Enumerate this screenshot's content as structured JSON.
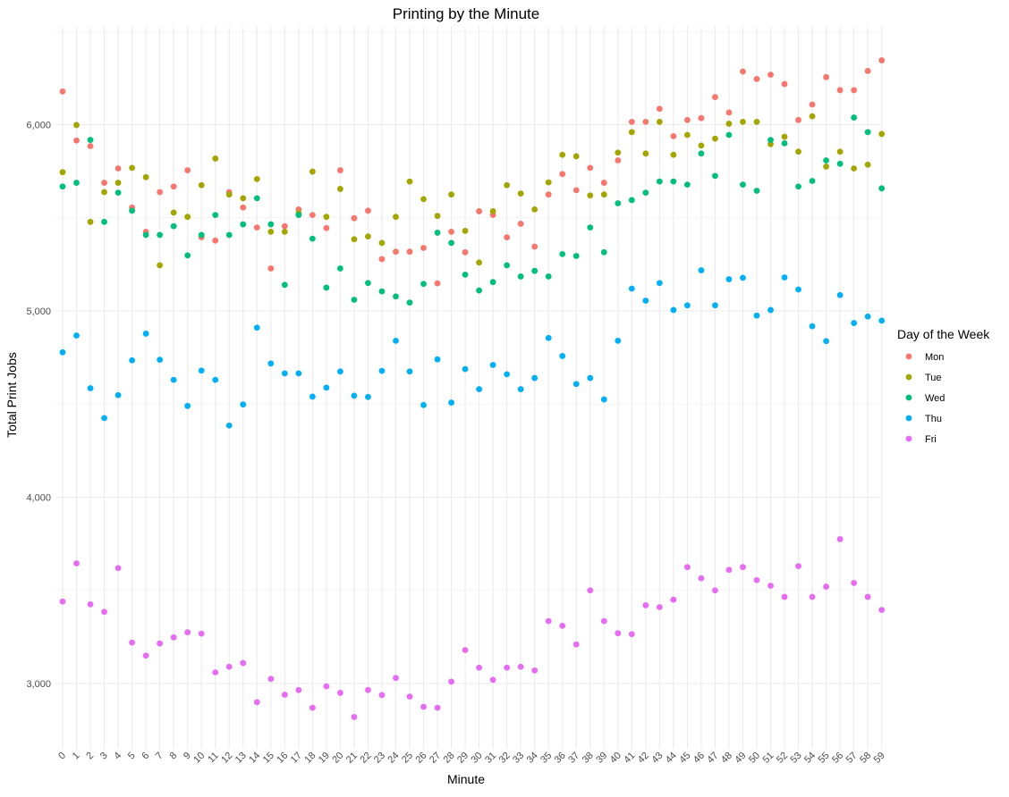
{
  "chart_data": {
    "type": "scatter",
    "title": "Printing by the Minute",
    "xlabel": "Minute",
    "ylabel": "Total Print Jobs",
    "legend_title": "Day of the Week",
    "legend_position": "right",
    "grid": true,
    "ylim": [
      2650,
      6520
    ],
    "y_ticks": [
      3000,
      4000,
      5000,
      6000
    ],
    "y_tick_labels": [
      "3,000",
      "4,000",
      "5,000",
      "6,000"
    ],
    "x": [
      0,
      1,
      2,
      3,
      4,
      5,
      6,
      7,
      8,
      9,
      10,
      11,
      12,
      13,
      14,
      15,
      16,
      17,
      18,
      19,
      20,
      21,
      22,
      23,
      24,
      25,
      26,
      27,
      28,
      29,
      30,
      31,
      32,
      33,
      34,
      35,
      36,
      37,
      38,
      39,
      40,
      41,
      42,
      43,
      44,
      45,
      46,
      47,
      48,
      49,
      50,
      51,
      52,
      53,
      54,
      55,
      56,
      57,
      58,
      59
    ],
    "x_tick_labels": [
      "0",
      "1",
      "2",
      "3",
      "4",
      "5",
      "6",
      "7",
      "8",
      "9",
      "10",
      "11",
      "12",
      "13",
      "14",
      "15",
      "16",
      "17",
      "18",
      "19",
      "20",
      "21",
      "22",
      "23",
      "24",
      "25",
      "26",
      "27",
      "28",
      "29",
      "30",
      "31",
      "32",
      "33",
      "34",
      "35",
      "36",
      "37",
      "38",
      "39",
      "40",
      "41",
      "42",
      "43",
      "44",
      "45",
      "46",
      "47",
      "48",
      "49",
      "50",
      "51",
      "52",
      "53",
      "54",
      "55",
      "56",
      "57",
      "58",
      "59"
    ],
    "series": [
      {
        "name": "Mon",
        "color": "#F8766D",
        "values": [
          6178,
          5915,
          5885,
          5688,
          5765,
          5555,
          5425,
          5638,
          5668,
          5755,
          5395,
          5378,
          5638,
          5555,
          5448,
          5228,
          5455,
          5545,
          5515,
          5445,
          5755,
          5498,
          5538,
          5278,
          5318,
          5318,
          5338,
          5148,
          5425,
          5315,
          5535,
          5515,
          5395,
          5468,
          5345,
          5625,
          5735,
          5648,
          5768,
          5688,
          5808,
          6015,
          6015,
          6085,
          5938,
          6025,
          6035,
          6148,
          6065,
          6285,
          6245,
          6268,
          6218,
          6025,
          6108,
          6255,
          6185,
          6185,
          6288,
          6345
        ]
      },
      {
        "name": "Tue",
        "color": "#A3A500",
        "values": [
          5745,
          5998,
          5478,
          5638,
          5688,
          5768,
          5718,
          5245,
          5528,
          5505,
          5675,
          5818,
          5625,
          5605,
          5708,
          5425,
          5425,
          5525,
          5748,
          5505,
          5655,
          5385,
          5400,
          5365,
          5505,
          5695,
          5600,
          5510,
          5625,
          5430,
          5260,
          5535,
          5675,
          5630,
          5545,
          5690,
          5838,
          5830,
          5620,
          5625,
          5850,
          5960,
          5845,
          6015,
          5838,
          5945,
          5888,
          5925,
          6005,
          6015,
          6015,
          5895,
          5935,
          5855,
          6045,
          5775,
          5855,
          5765,
          5785,
          5950
        ]
      },
      {
        "name": "Wed",
        "color": "#00BF7D",
        "values": [
          5668,
          5688,
          5918,
          5478,
          5635,
          5538,
          5408,
          5408,
          5455,
          5298,
          5408,
          5515,
          5408,
          5465,
          5605,
          5465,
          5140,
          5515,
          5388,
          5125,
          5228,
          5060,
          5150,
          5105,
          5078,
          5045,
          5145,
          5420,
          5365,
          5195,
          5110,
          5155,
          5245,
          5185,
          5215,
          5185,
          5305,
          5295,
          5448,
          5315,
          5578,
          5595,
          5635,
          5695,
          5695,
          5678,
          5845,
          5725,
          5945,
          5678,
          5645,
          5918,
          5900,
          5668,
          5698,
          5808,
          5790,
          6038,
          5960,
          5658
        ]
      },
      {
        "name": "Thu",
        "color": "#00B0F6",
        "values": [
          4778,
          4868,
          4585,
          4425,
          4548,
          4735,
          4878,
          4738,
          4630,
          4490,
          4680,
          4630,
          4385,
          4498,
          4910,
          4718,
          4665,
          4665,
          4540,
          4588,
          4675,
          4545,
          4538,
          4678,
          4840,
          4675,
          4495,
          4740,
          4508,
          4688,
          4580,
          4710,
          4660,
          4580,
          4640,
          4855,
          4758,
          4608,
          4640,
          4525,
          4840,
          5120,
          5055,
          5150,
          5005,
          5030,
          5218,
          5030,
          5170,
          5178,
          4975,
          5005,
          5180,
          5115,
          4918,
          4838,
          5085,
          4935,
          4970,
          4948
        ]
      },
      {
        "name": "Fri",
        "color": "#E76BF3",
        "values": [
          3440,
          3645,
          3425,
          3385,
          3620,
          3220,
          3150,
          3215,
          3248,
          3275,
          3268,
          3060,
          3090,
          3110,
          2900,
          3025,
          2940,
          2965,
          2870,
          2985,
          2950,
          2820,
          2965,
          2938,
          3030,
          2930,
          2875,
          2870,
          3010,
          3180,
          3085,
          3020,
          3085,
          3090,
          3070,
          3335,
          3310,
          3210,
          3500,
          3335,
          3270,
          3265,
          3420,
          3410,
          3450,
          3625,
          3565,
          3500,
          3610,
          3625,
          3555,
          3525,
          3465,
          3630,
          3465,
          3520,
          3775,
          3540,
          3465,
          3395
        ]
      }
    ]
  }
}
